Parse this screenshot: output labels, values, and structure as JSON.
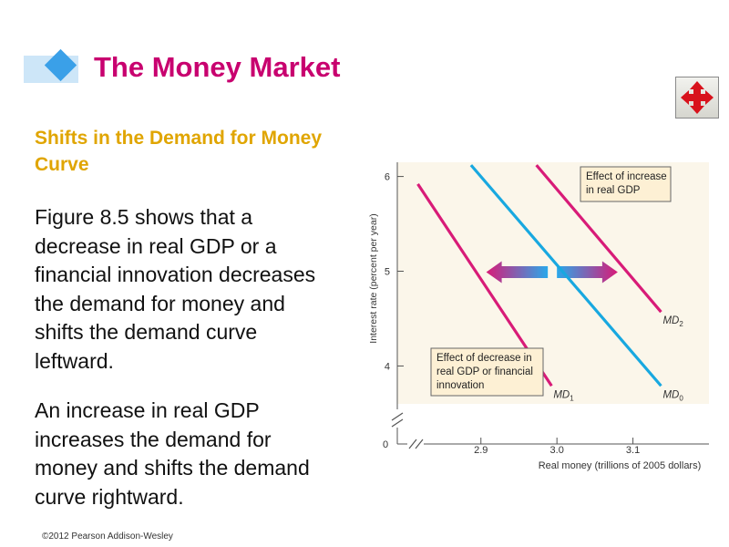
{
  "slide": {
    "title": "The Money Market",
    "subheading": "Shifts in the Demand for Money Curve",
    "paragraphs": [
      "Figure 8.5 shows that a decrease in real GDP or a financial innovation decreases the demand for money and shifts the demand curve leftward.",
      "An increase in real GDP increases the demand for money and shifts the demand curve rightward."
    ],
    "copyright": "©2012 Pearson Addison-Wesley",
    "nav_icon": "four-way-arrow-icon"
  },
  "colors": {
    "title": "#c8006f",
    "subheading": "#e0a500",
    "md0": "#18a8e0",
    "md1": "#d81b78",
    "md2": "#d81b78",
    "annotation_fill": "#fdf0d4",
    "plot_background": "#fbf6ea"
  },
  "chart_data": {
    "type": "line",
    "xlabel": "Real money (trillions of 2005 dollars)",
    "ylabel": "Interest rate (percent per year)",
    "x_ticks": [
      "2.9",
      "3.0",
      "3.1"
    ],
    "y_ticks": [
      "4",
      "5",
      "6"
    ],
    "origin_label": "0",
    "axis_break": true,
    "xlim": [
      2.79,
      3.2
    ],
    "ylim": [
      3.6,
      6.15
    ],
    "series": [
      {
        "name": "MD",
        "subscript": "1",
        "points": [
          [
            2.817,
            5.92
          ],
          [
            2.993,
            3.79
          ]
        ]
      },
      {
        "name": "MD",
        "subscript": "0",
        "points": [
          [
            2.887,
            6.12
          ],
          [
            3.137,
            3.79
          ]
        ]
      },
      {
        "name": "MD",
        "subscript": "2",
        "points": [
          [
            2.973,
            6.12
          ],
          [
            3.137,
            4.57
          ]
        ]
      }
    ],
    "annotations": [
      {
        "lines": [
          "Effect of increase",
          "in real GDP"
        ]
      },
      {
        "lines": [
          "Effect of decrease in",
          "real GDP or financial",
          "innovation"
        ]
      }
    ],
    "shift_arrows": [
      {
        "direction": "left",
        "from": [
          2.988,
          4.99
        ],
        "to": [
          2.907,
          4.99
        ]
      },
      {
        "direction": "right",
        "from": [
          3.0,
          4.99
        ],
        "to": [
          3.08,
          4.99
        ]
      }
    ]
  }
}
